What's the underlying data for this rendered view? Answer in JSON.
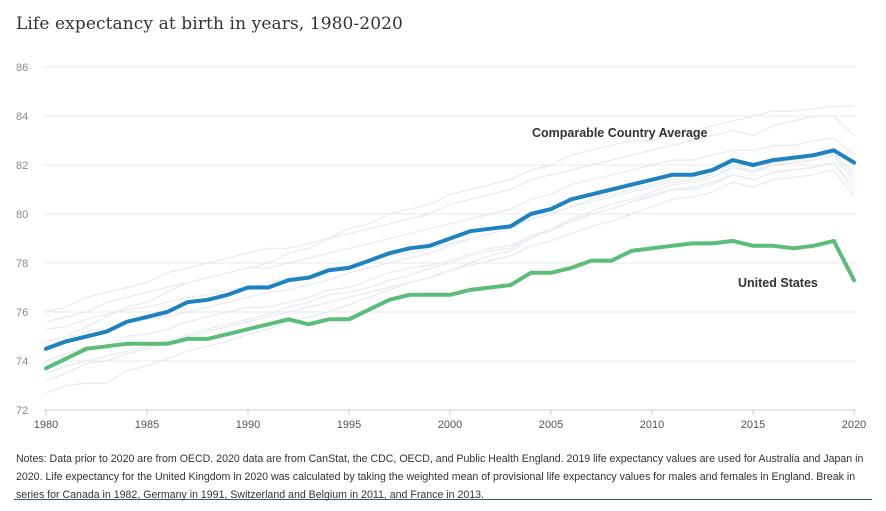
{
  "chart_data": {
    "type": "line",
    "title": "Life expectancy at birth in years, 1980-2020",
    "xlabel": "",
    "ylabel": "",
    "xlim": [
      1980,
      2020
    ],
    "ylim": [
      72,
      86
    ],
    "yticks": [
      72,
      74,
      76,
      78,
      80,
      82,
      84,
      86
    ],
    "xticks": [
      1980,
      1985,
      1990,
      1995,
      2000,
      2005,
      2010,
      2015,
      2020
    ],
    "grid": true,
    "x": [
      1980,
      1981,
      1982,
      1983,
      1984,
      1985,
      1986,
      1987,
      1988,
      1989,
      1990,
      1991,
      1992,
      1993,
      1994,
      1995,
      1996,
      1997,
      1998,
      1999,
      2000,
      2001,
      2002,
      2003,
      2004,
      2005,
      2006,
      2007,
      2008,
      2009,
      2010,
      2011,
      2012,
      2013,
      2014,
      2015,
      2016,
      2017,
      2018,
      2019,
      2020
    ],
    "series": [
      {
        "name": "Comparable Country Average",
        "color": "#1f82c0",
        "values": [
          74.5,
          74.8,
          75.0,
          75.2,
          75.6,
          75.8,
          76.0,
          76.4,
          76.5,
          76.7,
          77.0,
          77.0,
          77.3,
          77.4,
          77.7,
          77.8,
          78.1,
          78.4,
          78.6,
          78.7,
          79.0,
          79.3,
          79.4,
          79.5,
          80.0,
          80.2,
          80.6,
          80.8,
          81.0,
          81.2,
          81.4,
          81.6,
          81.6,
          81.8,
          82.2,
          82.0,
          82.2,
          82.3,
          82.4,
          82.6,
          82.1
        ]
      },
      {
        "name": "United States",
        "color": "#5cbd7b",
        "values": [
          73.7,
          74.1,
          74.5,
          74.6,
          74.7,
          74.7,
          74.7,
          74.9,
          74.9,
          75.1,
          75.3,
          75.5,
          75.7,
          75.5,
          75.7,
          75.7,
          76.1,
          76.5,
          76.7,
          76.7,
          76.7,
          76.9,
          77.0,
          77.1,
          77.6,
          77.6,
          77.8,
          78.1,
          78.1,
          78.5,
          78.6,
          78.7,
          78.8,
          78.8,
          78.9,
          78.7,
          78.7,
          78.6,
          78.7,
          78.9,
          77.3
        ]
      }
    ],
    "background_series": {
      "color": "#e6ebf1",
      "lines": [
        [
          74.8,
          75.0,
          75.4,
          75.8,
          76.2,
          76.4,
          76.8,
          77.2,
          77.4,
          77.6,
          77.8,
          78.0,
          78.4,
          78.6,
          79.0,
          79.4,
          79.6,
          80.0,
          80.2,
          80.4,
          80.8,
          81.0,
          81.2,
          81.4,
          81.8,
          82.0,
          82.4,
          82.6,
          82.8,
          83.0,
          83.0,
          83.2,
          83.4,
          83.6,
          83.8,
          84.0,
          84.2,
          84.2,
          84.3,
          84.4,
          84.4
        ],
        [
          76.0,
          76.2,
          76.6,
          76.8,
          77.0,
          77.2,
          77.6,
          77.8,
          78.0,
          78.2,
          78.4,
          78.6,
          78.6,
          78.8,
          79.0,
          79.2,
          79.4,
          79.6,
          79.8,
          80.0,
          80.4,
          80.6,
          80.8,
          81.0,
          81.4,
          81.6,
          81.8,
          82.0,
          82.2,
          82.4,
          82.6,
          82.8,
          83.0,
          83.2,
          83.4,
          83.2,
          83.6,
          83.8,
          84.0,
          84.0,
          83.2
        ],
        [
          75.6,
          75.8,
          76.0,
          76.4,
          76.6,
          76.8,
          77.0,
          77.2,
          77.4,
          77.6,
          77.8,
          77.8,
          78.0,
          78.2,
          78.4,
          78.6,
          78.8,
          79.0,
          79.2,
          79.4,
          79.6,
          79.8,
          80.0,
          80.2,
          80.6,
          80.8,
          81.2,
          81.4,
          81.6,
          81.8,
          82.0,
          82.2,
          82.2,
          82.4,
          82.6,
          82.6,
          82.8,
          82.8,
          83.0,
          83.1,
          82.4
        ],
        [
          75.3,
          75.4,
          75.7,
          75.9,
          76.1,
          76.2,
          76.4,
          76.6,
          76.7,
          76.9,
          77.0,
          77.2,
          77.4,
          77.5,
          77.8,
          77.9,
          78.1,
          78.3,
          78.4,
          78.6,
          78.8,
          79.0,
          79.2,
          79.4,
          79.8,
          80.0,
          80.3,
          80.5,
          80.7,
          80.9,
          81.1,
          81.3,
          81.4,
          81.6,
          81.9,
          81.8,
          82.0,
          82.1,
          82.2,
          82.4,
          81.7
        ],
        [
          74.6,
          74.9,
          75.2,
          75.3,
          75.6,
          75.7,
          75.8,
          76.0,
          76.2,
          76.4,
          76.6,
          76.8,
          76.9,
          77.1,
          77.3,
          77.6,
          77.8,
          78.0,
          78.2,
          78.4,
          78.7,
          79.0,
          79.2,
          79.4,
          79.8,
          80.0,
          80.3,
          80.6,
          80.8,
          81.0,
          81.2,
          81.4,
          81.5,
          81.7,
          82.0,
          81.9,
          82.1,
          82.2,
          82.3,
          82.5,
          81.5
        ],
        [
          74.0,
          74.3,
          74.6,
          74.6,
          75.0,
          75.1,
          75.3,
          75.6,
          75.8,
          76.0,
          76.2,
          76.2,
          76.4,
          76.6,
          76.9,
          77.0,
          77.3,
          77.6,
          77.8,
          77.9,
          78.1,
          78.4,
          78.6,
          78.7,
          79.1,
          79.3,
          79.7,
          80.0,
          80.2,
          80.5,
          80.8,
          81.0,
          81.0,
          81.2,
          81.6,
          81.4,
          81.7,
          81.8,
          81.9,
          82.1,
          80.9
        ],
        [
          73.2,
          73.5,
          73.9,
          74.0,
          74.3,
          74.5,
          74.7,
          75.1,
          75.3,
          75.5,
          75.7,
          75.9,
          76.2,
          76.4,
          76.7,
          76.8,
          77.0,
          77.3,
          77.5,
          77.8,
          78.0,
          78.3,
          78.5,
          78.6,
          79.1,
          79.4,
          79.7,
          80.0,
          80.2,
          80.5,
          80.7,
          81.0,
          81.1,
          81.3,
          81.6,
          81.4,
          81.7,
          81.8,
          81.9,
          82.1,
          81.1
        ],
        [
          72.7,
          73.0,
          73.1,
          73.1,
          73.6,
          73.8,
          74.1,
          74.4,
          74.6,
          74.8,
          75.1,
          75.3,
          75.6,
          75.8,
          76.0,
          76.3,
          76.6,
          76.9,
          77.2,
          77.4,
          77.7,
          78.0,
          78.3,
          78.5,
          79.0,
          79.4,
          79.8,
          80.1,
          80.4,
          80.6,
          80.9,
          81.2,
          81.3,
          81.5,
          81.9,
          81.7,
          82.0,
          82.1,
          82.2,
          82.4,
          81.3
        ],
        [
          73.5,
          73.8,
          74.0,
          74.2,
          74.4,
          74.6,
          74.8,
          75.0,
          75.2,
          75.4,
          75.6,
          75.8,
          76.0,
          76.2,
          76.4,
          76.6,
          76.8,
          77.0,
          77.2,
          77.4,
          77.7,
          77.9,
          78.1,
          78.3,
          78.7,
          78.9,
          79.2,
          79.5,
          79.7,
          80.0,
          80.3,
          80.6,
          80.7,
          80.9,
          81.3,
          81.1,
          81.4,
          81.5,
          81.6,
          81.8,
          80.7
        ]
      ]
    },
    "annotations": [
      "Comparable Country Average",
      "United States"
    ]
  },
  "notes": "Notes: Data prior to 2020 are from OECD. 2020 data are from CanStat, the CDC, OECD, and Public Health England. 2019 life expectancy values are used for Australia and Japan in 2020. Life expectancy for the United Kingdom in 2020 was calculated by taking the weighted mean of provisional life expectancy values for males and females in England. Break in series for Canada in 1982, Germany in 1991, Switzerland and Belgium in 2011, and France in 2013."
}
